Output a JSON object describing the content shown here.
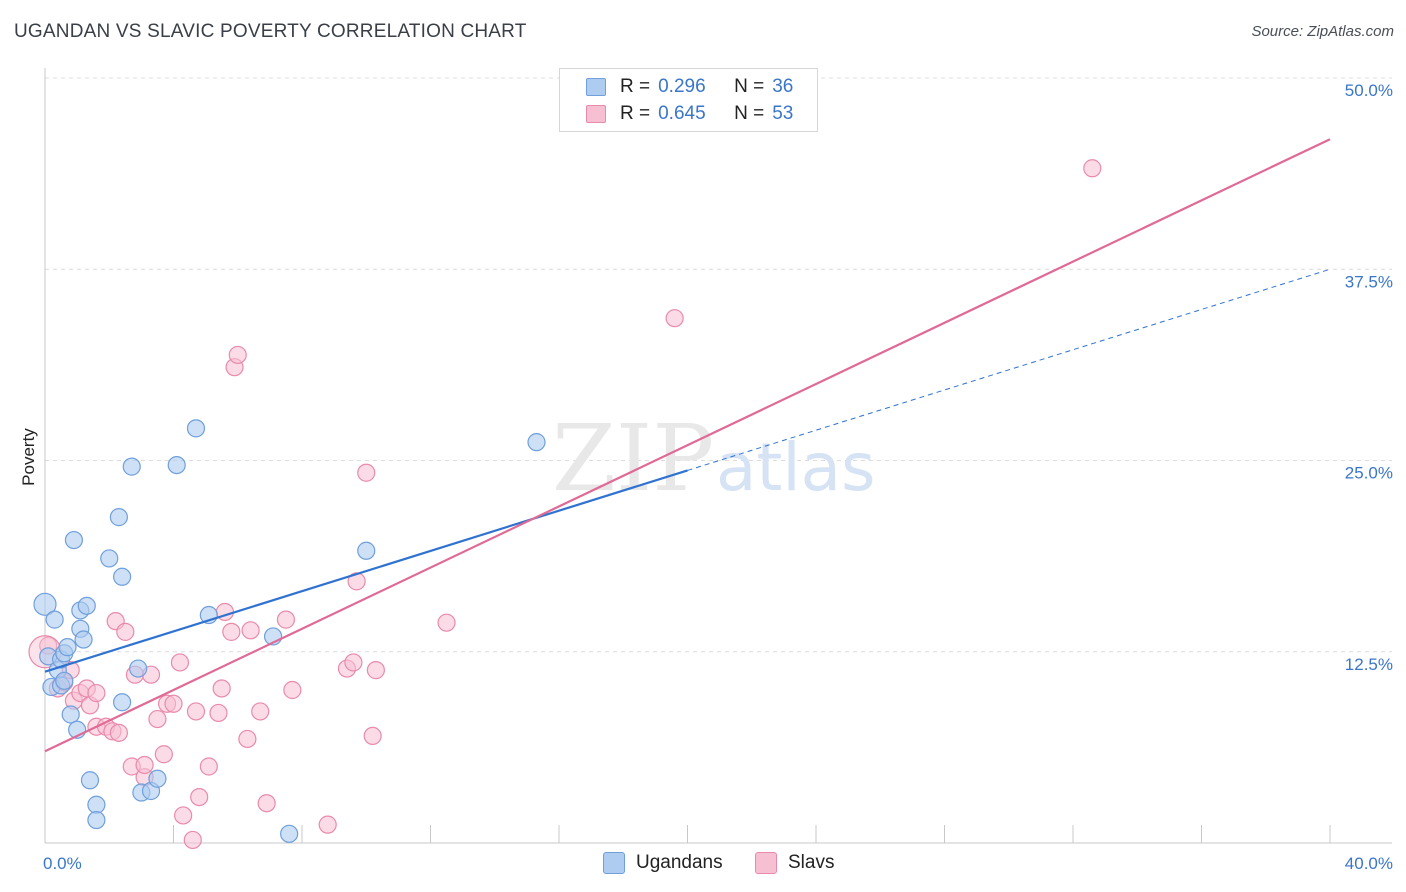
{
  "title": "UGANDAN VS SLAVIC POVERTY CORRELATION CHART",
  "source": "Source: ZipAtlas.com",
  "watermark": {
    "zip": "ZIP",
    "atlas": "atlas"
  },
  "legend": {
    "r_label": "R =",
    "n_label": "N =",
    "rows": [
      {
        "name": "Ugandans",
        "r": "0.296",
        "n": "36"
      },
      {
        "name": "Slavs",
        "r": "0.645",
        "n": "53"
      }
    ]
  },
  "colors": {
    "ugandans_fill": "#aecbf0",
    "ugandans_stroke": "#6f9fdc",
    "ugandans_line": "#2f72d0",
    "slavs_fill": "#f7c0d2",
    "slavs_stroke": "#e98aab",
    "slavs_line": "#e06a96",
    "tick_label": "#3a76c8",
    "grid": "#dcdcdc"
  },
  "chart_data": {
    "type": "scatter",
    "title": "UGANDAN VS SLAVIC POVERTY CORRELATION CHART",
    "xlabel": "",
    "ylabel": "Poverty",
    "xlim": [
      0,
      40
    ],
    "ylim": [
      0,
      50
    ],
    "x_tick_labels": [
      "0.0%",
      "40.0%"
    ],
    "y_ticks": [
      12.5,
      25.0,
      37.5,
      50.0
    ],
    "y_tick_labels": [
      "12.5%",
      "25.0%",
      "37.5%",
      "50.0%"
    ],
    "grid": true,
    "series": [
      {
        "name": "Ugandans",
        "r": 0.296,
        "n": 36,
        "trend": {
          "x0": 0,
          "y0": 11.2,
          "x1": 40,
          "y1": 37.5,
          "solid_until_x": 20
        },
        "points": [
          [
            0,
            15.6
          ],
          [
            0.3,
            14.6
          ],
          [
            0.1,
            12.2
          ],
          [
            0.4,
            11.3
          ],
          [
            0.5,
            12.0
          ],
          [
            0.6,
            12.4
          ],
          [
            0.7,
            12.8
          ],
          [
            0.2,
            10.2
          ],
          [
            0.5,
            10.3
          ],
          [
            0.6,
            10.6
          ],
          [
            0.8,
            8.4
          ],
          [
            1.0,
            7.4
          ],
          [
            0.9,
            19.8
          ],
          [
            1.1,
            15.2
          ],
          [
            1.3,
            15.5
          ],
          [
            1.1,
            14.0
          ],
          [
            1.2,
            13.3
          ],
          [
            1.4,
            4.1
          ],
          [
            1.6,
            2.5
          ],
          [
            1.6,
            1.5
          ],
          [
            2.0,
            18.6
          ],
          [
            2.3,
            21.3
          ],
          [
            2.4,
            17.4
          ],
          [
            2.4,
            9.2
          ],
          [
            2.7,
            24.6
          ],
          [
            2.9,
            11.4
          ],
          [
            3.0,
            3.3
          ],
          [
            3.3,
            3.4
          ],
          [
            3.5,
            4.2
          ],
          [
            4.1,
            24.7
          ],
          [
            4.7,
            27.1
          ],
          [
            5.1,
            14.9
          ],
          [
            7.1,
            13.5
          ],
          [
            7.6,
            0.6
          ],
          [
            10.0,
            19.1
          ],
          [
            15.3,
            26.2
          ]
        ]
      },
      {
        "name": "Slavs",
        "r": 0.645,
        "n": 53,
        "trend": {
          "x0": 0,
          "y0": 6.0,
          "x1": 40,
          "y1": 46.0
        },
        "points": [
          [
            0.1,
            12.9
          ],
          [
            0.4,
            10.1
          ],
          [
            0.6,
            10.5
          ],
          [
            0.8,
            11.3
          ],
          [
            0.9,
            9.3
          ],
          [
            1.1,
            9.8
          ],
          [
            1.3,
            10.1
          ],
          [
            1.4,
            9.0
          ],
          [
            1.6,
            9.8
          ],
          [
            1.6,
            7.6
          ],
          [
            1.9,
            7.6
          ],
          [
            2.1,
            7.3
          ],
          [
            2.2,
            14.5
          ],
          [
            2.3,
            7.2
          ],
          [
            2.5,
            13.8
          ],
          [
            2.7,
            5.0
          ],
          [
            2.8,
            11.0
          ],
          [
            3.1,
            4.3
          ],
          [
            3.1,
            5.1
          ],
          [
            3.3,
            11.0
          ],
          [
            3.5,
            8.1
          ],
          [
            3.7,
            5.8
          ],
          [
            3.8,
            9.1
          ],
          [
            4.0,
            9.1
          ],
          [
            4.2,
            11.8
          ],
          [
            4.3,
            1.8
          ],
          [
            4.6,
            0.2
          ],
          [
            4.7,
            8.6
          ],
          [
            4.8,
            3.0
          ],
          [
            5.1,
            5.0
          ],
          [
            5.4,
            8.5
          ],
          [
            5.5,
            10.1
          ],
          [
            5.6,
            15.1
          ],
          [
            5.8,
            13.8
          ],
          [
            5.9,
            31.1
          ],
          [
            6.0,
            31.9
          ],
          [
            6.3,
            6.8
          ],
          [
            6.4,
            13.9
          ],
          [
            6.7,
            8.6
          ],
          [
            6.9,
            2.6
          ],
          [
            7.5,
            14.6
          ],
          [
            7.7,
            10.0
          ],
          [
            8.8,
            1.2
          ],
          [
            9.4,
            11.4
          ],
          [
            9.6,
            11.8
          ],
          [
            9.7,
            17.1
          ],
          [
            10.0,
            24.2
          ],
          [
            10.2,
            7.0
          ],
          [
            10.3,
            11.3
          ],
          [
            12.5,
            14.4
          ],
          [
            19.6,
            34.3
          ],
          [
            32.6,
            44.1
          ],
          [
            0.0,
            12.5
          ]
        ]
      }
    ]
  }
}
